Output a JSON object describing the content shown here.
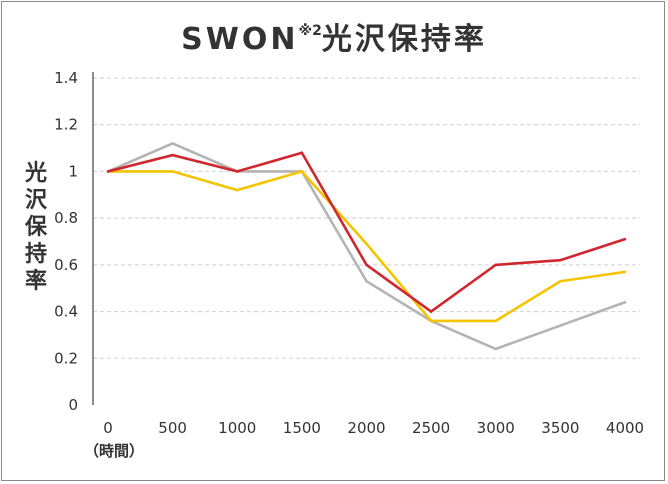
{
  "chart_data": {
    "type": "line",
    "title": "SWON",
    "title_superscript": "※2",
    "title_suffix": "光沢保持率",
    "ylabel": "光沢保持率",
    "xlabel": "（時間）",
    "x": [
      0,
      500,
      1000,
      1500,
      2000,
      2500,
      3000,
      3500,
      4000
    ],
    "xticks": [
      "0",
      "500",
      "1000",
      "1500",
      "2000",
      "2500",
      "3000",
      "3500",
      "4000"
    ],
    "yticks": [
      "0",
      "0.2",
      "0.4",
      "0.6",
      "0.8",
      "1",
      "1.2",
      "1.4"
    ],
    "ylim": [
      0,
      1.4
    ],
    "grid": "horizontal dashed",
    "series": [
      {
        "color": "#b4b4b4",
        "values": [
          1,
          1.12,
          1,
          1,
          0.53,
          0.36,
          0.24,
          0.34,
          0.44
        ]
      },
      {
        "color": "#f5c400",
        "values": [
          1,
          1,
          0.92,
          1,
          0.69,
          0.36,
          0.36,
          0.53,
          0.57
        ]
      },
      {
        "color": "#d0272e",
        "values": [
          1,
          1.07,
          1,
          1.08,
          0.6,
          0.4,
          0.6,
          0.62,
          0.71
        ]
      }
    ]
  }
}
